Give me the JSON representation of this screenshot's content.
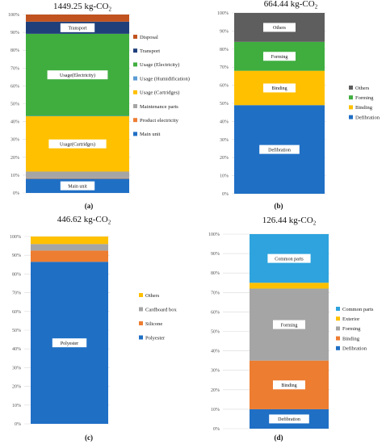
{
  "chart_data": [
    {
      "type": "bar",
      "subtype": "stacked_100",
      "title": "1449.25 kg-CO2",
      "panel": "(a)",
      "ylim": [
        0,
        100
      ],
      "yticks": [
        "0%",
        "10%",
        "20%",
        "30%",
        "40%",
        "50%",
        "60%",
        "70%",
        "80%",
        "90%",
        "100%"
      ],
      "grid": true,
      "legend_position": "right",
      "series": [
        {
          "name": "Main unit",
          "value": 8,
          "color": "#1f6fc5",
          "label": "Main unit"
        },
        {
          "name": "Product electricity",
          "value": 0.3,
          "color": "#ed7d31",
          "label": ""
        },
        {
          "name": "Maintenance parts",
          "value": 3.7,
          "color": "#a5a5a5",
          "label": ""
        },
        {
          "name": "Usage (Cartridges)",
          "value": 31,
          "color": "#ffc000",
          "label": "Usage(Cartridges)"
        },
        {
          "name": "Usage (Humidification)",
          "value": 0.2,
          "color": "#5b9bd5",
          "label": ""
        },
        {
          "name": "Usage (Electricity)",
          "value": 46,
          "color": "#3fae3f",
          "label": "Usage(Electricity)"
        },
        {
          "name": "Transport",
          "value": 6.8,
          "color": "#1f3f7a",
          "label": "Transport"
        },
        {
          "name": "Disposal",
          "value": 4,
          "color": "#c0531f",
          "label": ""
        }
      ]
    },
    {
      "type": "bar",
      "subtype": "stacked_100",
      "title": "664.44 kg-CO2",
      "panel": "(b)",
      "ylim": [
        0,
        100
      ],
      "yticks": [
        "0%",
        "10%",
        "20%",
        "30%",
        "40%",
        "50%",
        "60%",
        "70%",
        "80%",
        "90%",
        "100%"
      ],
      "grid": true,
      "legend_position": "right",
      "series": [
        {
          "name": "Defibration",
          "value": 49,
          "color": "#1f6fc5",
          "label": "Defibration"
        },
        {
          "name": "Binding",
          "value": 19,
          "color": "#ffc000",
          "label": "Binding"
        },
        {
          "name": "Forming",
          "value": 16,
          "color": "#3fae3f",
          "label": "Forming"
        },
        {
          "name": "Others",
          "value": 16,
          "color": "#5e5e5e",
          "label": "Others"
        }
      ]
    },
    {
      "type": "bar",
      "subtype": "stacked_100",
      "title": "446.62 kg-CO2",
      "panel": "(c)",
      "ylim": [
        0,
        100
      ],
      "yticks": [
        "0%",
        "10%",
        "20%",
        "30%",
        "40%",
        "50%",
        "60%",
        "70%",
        "80%",
        "90%",
        "100%"
      ],
      "grid": true,
      "legend_position": "right",
      "series": [
        {
          "name": "Polyester",
          "value": 86.5,
          "color": "#1f6fc5",
          "label": "Polyester"
        },
        {
          "name": "Silicone",
          "value": 6,
          "color": "#ed7d31",
          "label": ""
        },
        {
          "name": "Cardboard box",
          "value": 3.5,
          "color": "#a5a5a5",
          "label": ""
        },
        {
          "name": "Others",
          "value": 4,
          "color": "#ffc000",
          "label": ""
        }
      ]
    },
    {
      "type": "bar",
      "subtype": "stacked_100",
      "title": "126.44 kg-CO2",
      "panel": "(d)",
      "ylim": [
        0,
        100
      ],
      "yticks": [
        "0%",
        "10%",
        "20%",
        "30%",
        "40%",
        "50%",
        "60%",
        "70%",
        "80%",
        "90%",
        "100%"
      ],
      "grid": true,
      "legend_position": "right",
      "series": [
        {
          "name": "Defibration",
          "value": 10,
          "color": "#1f6fc5",
          "label": "Defibration"
        },
        {
          "name": "Binding",
          "value": 25,
          "color": "#ed7d31",
          "label": "Binding"
        },
        {
          "name": "Forming",
          "value": 37,
          "color": "#a5a5a5",
          "label": "Forming"
        },
        {
          "name": "Exterior",
          "value": 3,
          "color": "#ffc000",
          "label": ""
        },
        {
          "name": "Common parts",
          "value": 25,
          "color": "#2ea3dd",
          "label": "Common parts"
        }
      ]
    }
  ]
}
